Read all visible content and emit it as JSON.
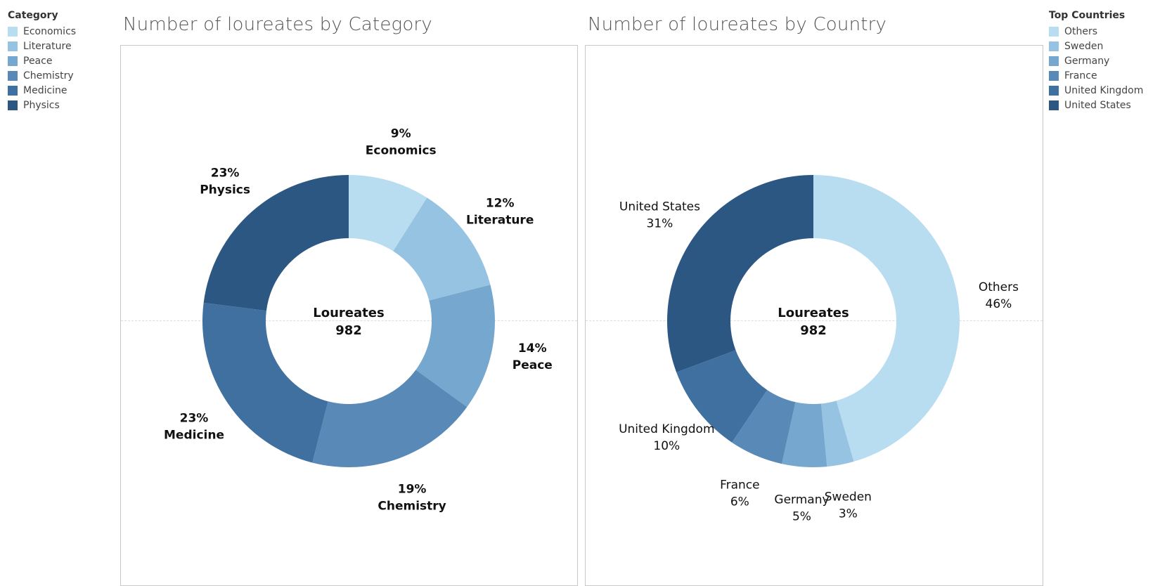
{
  "chart_data": [
    {
      "type": "pie",
      "variant": "donut",
      "title": "Number of loureates by Category",
      "center_label": "Loureates",
      "center_value": "982",
      "legend_title": "Category",
      "legend_placement": "top-left",
      "categories": [
        "Economics",
        "Literature",
        "Peace",
        "Chemistry",
        "Medicine",
        "Physics"
      ],
      "values": [
        9,
        12,
        14,
        19,
        23,
        23
      ],
      "value_labels": [
        "9%",
        "12%",
        "14%",
        "19%",
        "23%",
        "23%"
      ],
      "label_order": "percent-first",
      "colors": [
        "#b8dcf0",
        "#97c3e2",
        "#76a8cf",
        "#5889b7",
        "#40709f",
        "#2b5782"
      ]
    },
    {
      "type": "pie",
      "variant": "donut",
      "title": "Number of loureates by Country",
      "center_label": "Loureates",
      "center_value": "982",
      "legend_title": "Top Countries",
      "legend_placement": "top-right",
      "categories": [
        "Others",
        "Sweden",
        "Germany",
        "France",
        "United Kingdom",
        "United States"
      ],
      "values": [
        46,
        3,
        5,
        6,
        10,
        31
      ],
      "value_labels": [
        "46%",
        "3%",
        "5%",
        "6%",
        "10%",
        "31%"
      ],
      "label_order": "name-first",
      "colors": [
        "#b8dcf0",
        "#97c3e2",
        "#76a8cf",
        "#5889b7",
        "#40709f",
        "#2b5782"
      ]
    }
  ]
}
